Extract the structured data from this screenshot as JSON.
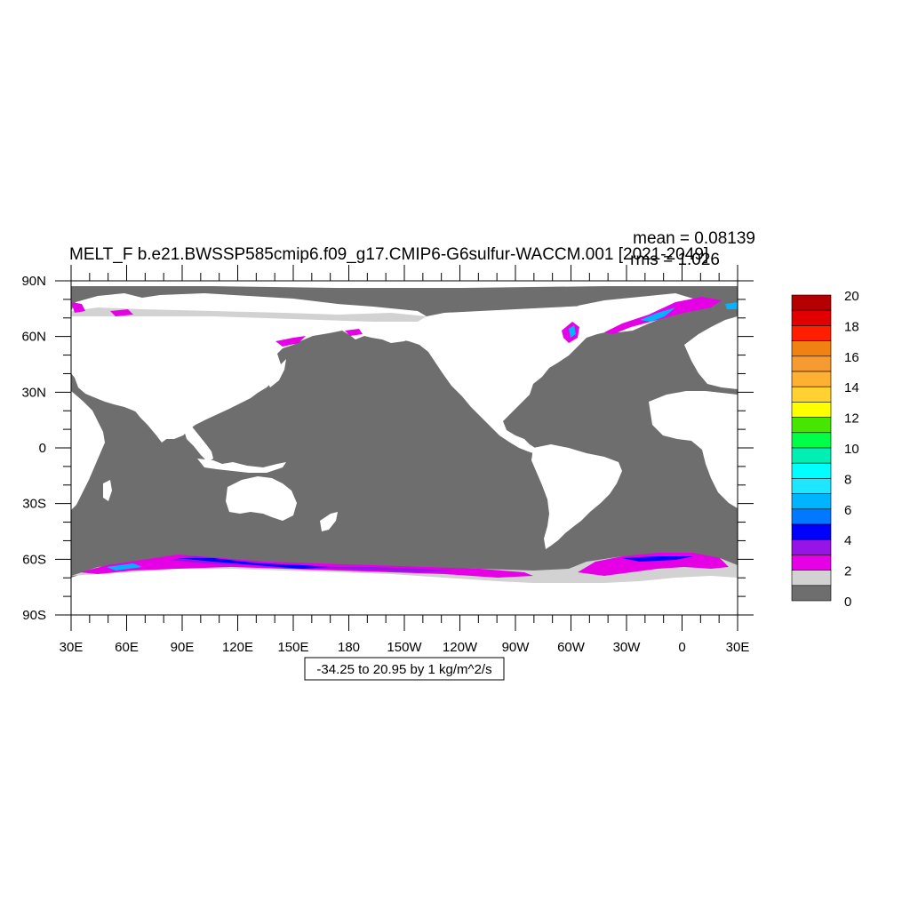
{
  "title": "MELT_F b.e21.BWSSP585cmip6.f09_g17.CMIP6-G6sulfur-WACCM.001 [2021-2049]",
  "stats": {
    "mean": "mean = 0.08139",
    "rms": "rms = 1.026"
  },
  "contour_info": "-34.25 to 20.95 by 1 kg/m^2/s",
  "x_ticks": [
    "30E",
    "60E",
    "90E",
    "120E",
    "150E",
    "180",
    "150W",
    "120W",
    "90W",
    "60W",
    "30W",
    "0",
    "30E"
  ],
  "y_ticks": [
    "90N",
    "60N",
    "30N",
    "0",
    "30S",
    "60S",
    "90S"
  ],
  "colorbar": {
    "labels": [
      "20",
      "18",
      "16",
      "14",
      "12",
      "10",
      "8",
      "6",
      "4",
      "2",
      "0"
    ],
    "colors": [
      "#b40000",
      "#e10000",
      "#ff1e00",
      "#f08214",
      "#f59b32",
      "#ffaf32",
      "#ffd232",
      "#ffff00",
      "#46e600",
      "#00ff46",
      "#00f0b4",
      "#00ffff",
      "#1ee6ff",
      "#00b4ff",
      "#0078ff",
      "#0000ff",
      "#9614e6",
      "#e600e6",
      "#d2d2d2",
      "#6e6e6e"
    ]
  },
  "colors": {
    "ocean": "#6e6e6e",
    "land": "#ffffff",
    "ice_light": "#d2d2d2",
    "melt_magenta": "#e600e6",
    "melt_purple": "#9614e6",
    "melt_blue": "#0000ff",
    "melt_cyan": "#00b4ff"
  }
}
